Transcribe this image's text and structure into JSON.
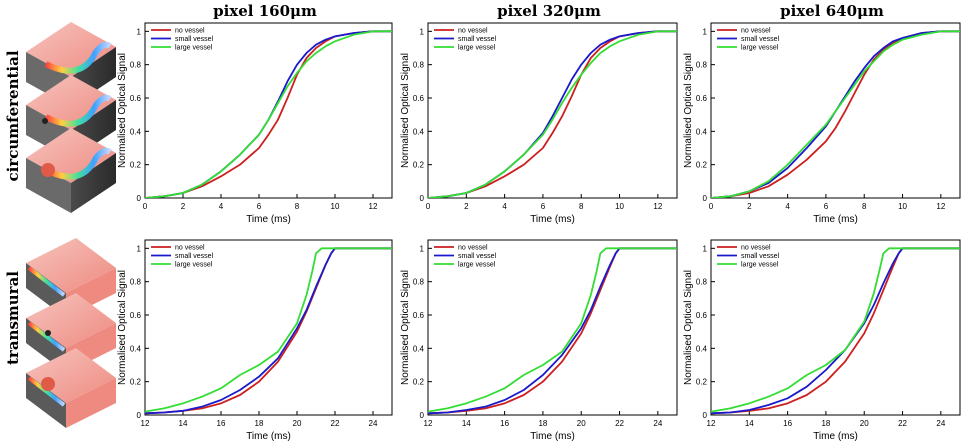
{
  "columns": [
    "pixel  160μm",
    "pixel 320μm",
    "pixel 640μm"
  ],
  "rows": [
    "circumferential",
    "transmural"
  ],
  "chart_data": [
    {
      "type": "line",
      "row": "circumferential",
      "column": "pixel  160μm",
      "xlabel": "Time (ms)",
      "ylabel": "Normalised Optical Signal",
      "xlim": [
        0,
        13
      ],
      "ylim": [
        0,
        1.05
      ],
      "xticks": [
        0,
        2,
        4,
        6,
        8,
        10,
        12
      ],
      "yticks": [
        0,
        0.2,
        0.4,
        0.6,
        0.8,
        1
      ],
      "series": [
        {
          "name": "no vessel",
          "color": "#cc1f1f",
          "x": [
            0,
            1,
            2,
            3,
            4,
            5,
            6,
            6.5,
            7,
            7.5,
            8,
            8.5,
            9,
            9.5,
            10,
            11,
            12,
            13
          ],
          "y": [
            0,
            0.01,
            0.03,
            0.07,
            0.13,
            0.2,
            0.3,
            0.38,
            0.47,
            0.6,
            0.74,
            0.84,
            0.9,
            0.94,
            0.97,
            0.99,
            1,
            1
          ]
        },
        {
          "name": "small vessel",
          "color": "#1a1acc",
          "x": [
            0,
            1,
            2,
            3,
            4,
            5,
            6,
            6.5,
            7,
            7.5,
            8,
            8.5,
            9,
            9.5,
            10,
            11,
            12,
            13
          ],
          "y": [
            0,
            0.01,
            0.03,
            0.08,
            0.16,
            0.26,
            0.38,
            0.47,
            0.58,
            0.7,
            0.8,
            0.87,
            0.92,
            0.95,
            0.97,
            0.99,
            1,
            1
          ]
        },
        {
          "name": "large vessel",
          "color": "#33dd33",
          "x": [
            0,
            1,
            2,
            3,
            4,
            5,
            6,
            6.5,
            7,
            7.5,
            8,
            8.5,
            9,
            9.5,
            10,
            11,
            12,
            13
          ],
          "y": [
            0,
            0.01,
            0.03,
            0.08,
            0.16,
            0.26,
            0.38,
            0.47,
            0.57,
            0.67,
            0.75,
            0.82,
            0.87,
            0.91,
            0.94,
            0.98,
            1,
            1
          ]
        }
      ]
    },
    {
      "type": "line",
      "row": "circumferential",
      "column": "pixel 320μm",
      "xlabel": "Time (ms)",
      "ylabel": "Normalised Optical Signal",
      "xlim": [
        0,
        13
      ],
      "ylim": [
        0,
        1.05
      ],
      "xticks": [
        0,
        2,
        4,
        6,
        8,
        10,
        12
      ],
      "yticks": [
        0,
        0.2,
        0.4,
        0.6,
        0.8,
        1
      ],
      "series": [
        {
          "name": "no vessel",
          "color": "#cc1f1f",
          "x": [
            0,
            1,
            2,
            3,
            4,
            5,
            6,
            6.5,
            7,
            7.5,
            8,
            8.5,
            9,
            9.5,
            10,
            11,
            12,
            13
          ],
          "y": [
            0,
            0.01,
            0.03,
            0.07,
            0.13,
            0.2,
            0.3,
            0.39,
            0.49,
            0.61,
            0.74,
            0.84,
            0.9,
            0.94,
            0.97,
            0.99,
            1,
            1
          ]
        },
        {
          "name": "small vessel",
          "color": "#1a1acc",
          "x": [
            0,
            1,
            2,
            3,
            4,
            5,
            6,
            6.5,
            7,
            7.5,
            8,
            8.5,
            9,
            9.5,
            10,
            11,
            12,
            13
          ],
          "y": [
            0,
            0.01,
            0.03,
            0.08,
            0.16,
            0.26,
            0.39,
            0.49,
            0.6,
            0.71,
            0.8,
            0.87,
            0.92,
            0.95,
            0.97,
            0.99,
            1,
            1
          ]
        },
        {
          "name": "large vessel",
          "color": "#33dd33",
          "x": [
            0,
            1,
            2,
            3,
            4,
            5,
            6,
            6.5,
            7,
            7.5,
            8,
            8.5,
            9,
            9.5,
            10,
            11,
            12,
            13
          ],
          "y": [
            0,
            0.01,
            0.03,
            0.08,
            0.16,
            0.26,
            0.38,
            0.47,
            0.57,
            0.66,
            0.74,
            0.81,
            0.87,
            0.91,
            0.94,
            0.98,
            1,
            1
          ]
        }
      ]
    },
    {
      "type": "line",
      "row": "circumferential",
      "column": "pixel 640μm",
      "xlabel": "Time (ms)",
      "ylabel": "Normalised Optical Signal",
      "xlim": [
        0,
        13
      ],
      "ylim": [
        0,
        1.05
      ],
      "xticks": [
        0,
        2,
        4,
        6,
        8,
        10,
        12
      ],
      "yticks": [
        0,
        0.2,
        0.4,
        0.6,
        0.8,
        1
      ],
      "series": [
        {
          "name": "no vessel",
          "color": "#cc1f1f",
          "x": [
            0,
            1,
            2,
            3,
            4,
            5,
            6,
            6.5,
            7,
            7.5,
            8,
            8.5,
            9,
            9.5,
            10,
            11,
            12,
            13
          ],
          "y": [
            0,
            0.01,
            0.03,
            0.07,
            0.14,
            0.23,
            0.34,
            0.42,
            0.52,
            0.63,
            0.74,
            0.83,
            0.89,
            0.93,
            0.96,
            0.99,
            1,
            1
          ]
        },
        {
          "name": "small vessel",
          "color": "#1a1acc",
          "x": [
            0,
            1,
            2,
            3,
            4,
            5,
            6,
            6.5,
            7,
            7.5,
            8,
            8.5,
            9,
            9.5,
            10,
            11,
            12,
            13
          ],
          "y": [
            0,
            0.01,
            0.04,
            0.09,
            0.18,
            0.3,
            0.43,
            0.52,
            0.61,
            0.7,
            0.78,
            0.85,
            0.9,
            0.94,
            0.96,
            0.99,
            1,
            1
          ]
        },
        {
          "name": "large vessel",
          "color": "#33dd33",
          "x": [
            0,
            1,
            2,
            3,
            4,
            5,
            6,
            6.5,
            7,
            7.5,
            8,
            8.5,
            9,
            9.5,
            10,
            11,
            12,
            13
          ],
          "y": [
            0,
            0.01,
            0.04,
            0.1,
            0.2,
            0.32,
            0.44,
            0.52,
            0.6,
            0.68,
            0.76,
            0.82,
            0.88,
            0.92,
            0.95,
            0.98,
            1,
            1
          ]
        }
      ]
    },
    {
      "type": "line",
      "row": "transmural",
      "column": "pixel  160μm",
      "xlabel": "Time (ms)",
      "ylabel": "Normalised Optical Signal",
      "xlim": [
        12,
        25
      ],
      "ylim": [
        0,
        1.05
      ],
      "xticks": [
        12,
        14,
        16,
        18,
        20,
        22,
        24
      ],
      "yticks": [
        0,
        0.2,
        0.4,
        0.6,
        0.8,
        1
      ],
      "series": [
        {
          "name": "no vessel",
          "color": "#cc1f1f",
          "x": [
            12,
            13,
            14,
            15,
            16,
            17,
            18,
            19,
            20,
            20.5,
            21,
            21.5,
            21.8,
            22,
            23,
            24,
            25
          ],
          "y": [
            0.01,
            0.015,
            0.025,
            0.04,
            0.07,
            0.12,
            0.2,
            0.32,
            0.5,
            0.62,
            0.76,
            0.9,
            0.97,
            1,
            1,
            1,
            1
          ]
        },
        {
          "name": "small vessel",
          "color": "#1a1acc",
          "x": [
            12,
            13,
            14,
            15,
            16,
            17,
            18,
            19,
            20,
            20.5,
            21,
            21.5,
            21.8,
            22,
            23,
            24,
            25
          ],
          "y": [
            0.01,
            0.015,
            0.025,
            0.05,
            0.09,
            0.15,
            0.23,
            0.34,
            0.52,
            0.63,
            0.77,
            0.9,
            0.97,
            1,
            1,
            1,
            1
          ]
        },
        {
          "name": "large vessel",
          "color": "#33dd33",
          "x": [
            12,
            13,
            14,
            15,
            16,
            17,
            18,
            19,
            20,
            20.5,
            20.8,
            21,
            21.3,
            22,
            23,
            24,
            25
          ],
          "y": [
            0.02,
            0.04,
            0.07,
            0.11,
            0.16,
            0.24,
            0.3,
            0.38,
            0.55,
            0.72,
            0.86,
            0.97,
            1,
            1,
            1,
            1,
            1
          ]
        }
      ]
    },
    {
      "type": "line",
      "row": "transmural",
      "column": "pixel 320μm",
      "xlabel": "Time (ms)",
      "ylabel": "Normalised Optical Signal",
      "xlim": [
        12,
        25
      ],
      "ylim": [
        0,
        1.05
      ],
      "xticks": [
        12,
        14,
        16,
        18,
        20,
        22,
        24
      ],
      "yticks": [
        0,
        0.2,
        0.4,
        0.6,
        0.8,
        1
      ],
      "series": [
        {
          "name": "no vessel",
          "color": "#cc1f1f",
          "x": [
            12,
            13,
            14,
            15,
            16,
            17,
            18,
            19,
            20,
            20.5,
            21,
            21.5,
            21.8,
            22,
            23,
            24,
            25
          ],
          "y": [
            0.01,
            0.015,
            0.025,
            0.04,
            0.07,
            0.12,
            0.2,
            0.32,
            0.49,
            0.61,
            0.75,
            0.89,
            0.97,
            1,
            1,
            1,
            1
          ]
        },
        {
          "name": "small vessel",
          "color": "#1a1acc",
          "x": [
            12,
            13,
            14,
            15,
            16,
            17,
            18,
            19,
            20,
            20.5,
            21,
            21.5,
            21.8,
            22,
            23,
            24,
            25
          ],
          "y": [
            0.01,
            0.015,
            0.03,
            0.05,
            0.09,
            0.15,
            0.24,
            0.36,
            0.52,
            0.63,
            0.77,
            0.9,
            0.97,
            1,
            1,
            1,
            1
          ]
        },
        {
          "name": "large vessel",
          "color": "#33dd33",
          "x": [
            12,
            13,
            14,
            15,
            16,
            17,
            18,
            19,
            20,
            20.5,
            20.8,
            21,
            21.3,
            22,
            23,
            24,
            25
          ],
          "y": [
            0.02,
            0.04,
            0.07,
            0.11,
            0.16,
            0.24,
            0.3,
            0.38,
            0.55,
            0.72,
            0.86,
            0.97,
            1,
            1,
            1,
            1,
            1
          ]
        }
      ]
    },
    {
      "type": "line",
      "row": "transmural",
      "column": "pixel 640μm",
      "xlabel": "Time (ms)",
      "ylabel": "Normalised Optical Signal",
      "xlim": [
        12,
        25
      ],
      "ylim": [
        0,
        1.05
      ],
      "xticks": [
        12,
        14,
        16,
        18,
        20,
        22,
        24
      ],
      "yticks": [
        0,
        0.2,
        0.4,
        0.6,
        0.8,
        1
      ],
      "series": [
        {
          "name": "no vessel",
          "color": "#cc1f1f",
          "x": [
            12,
            13,
            14,
            15,
            16,
            17,
            18,
            19,
            20,
            20.5,
            21,
            21.5,
            21.8,
            22,
            23,
            24,
            25
          ],
          "y": [
            0.01,
            0.015,
            0.025,
            0.04,
            0.07,
            0.12,
            0.2,
            0.32,
            0.49,
            0.61,
            0.75,
            0.89,
            0.97,
            1,
            1,
            1,
            1
          ]
        },
        {
          "name": "small vessel",
          "color": "#1a1acc",
          "x": [
            12,
            13,
            14,
            15,
            16,
            17,
            18,
            19,
            20,
            20.5,
            21,
            21.5,
            21.8,
            22,
            23,
            24,
            25
          ],
          "y": [
            0.01,
            0.015,
            0.03,
            0.06,
            0.1,
            0.17,
            0.27,
            0.39,
            0.55,
            0.66,
            0.79,
            0.91,
            0.97,
            1,
            1,
            1,
            1
          ]
        },
        {
          "name": "large vessel",
          "color": "#33dd33",
          "x": [
            12,
            13,
            14,
            15,
            16,
            17,
            18,
            19,
            20,
            20.5,
            20.8,
            21,
            21.3,
            22,
            23,
            24,
            25
          ],
          "y": [
            0.02,
            0.04,
            0.07,
            0.11,
            0.16,
            0.24,
            0.3,
            0.39,
            0.56,
            0.73,
            0.87,
            0.97,
            1,
            1,
            1,
            1,
            1
          ]
        }
      ]
    }
  ]
}
